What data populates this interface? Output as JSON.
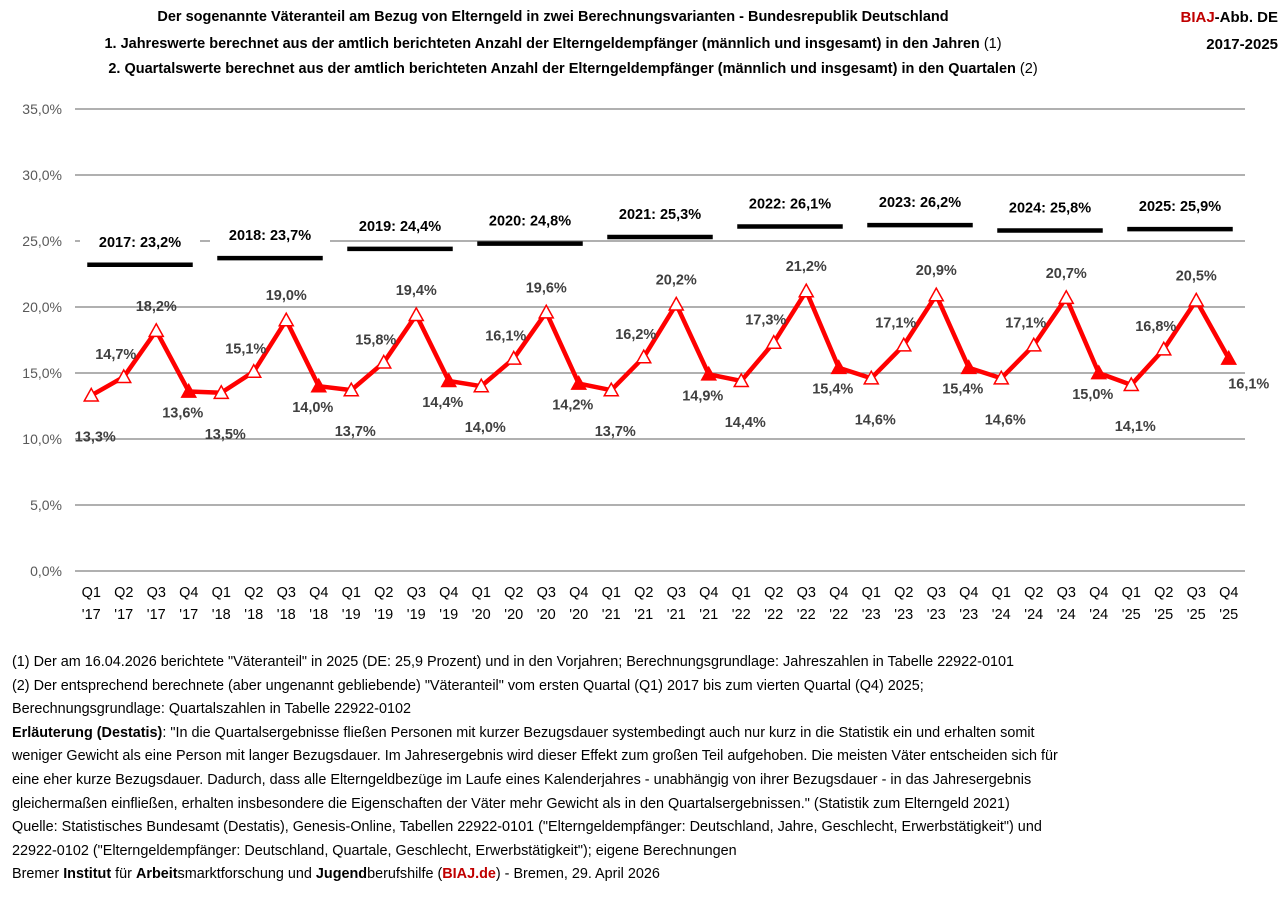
{
  "header": {
    "title": "Der sogenannte Väteranteil am Bezug von Elterngeld in zwei Berechnungsvarianten - Bundesrepublik Deutschland",
    "line1": "1. Jahreswerte berechnet aus der amtlich berichteten Anzahl der Elterngeldempfänger (männlich und insgesamt) in den Jahren",
    "line1_ref": "(1)",
    "line2": "2. Quartalswerte berechnet aus der amtlich berichteten Anzahl der Elterngeldempfänger (männlich und insgesamt) in den Quartalen",
    "line2_ref": "(2)",
    "badge_brand": "BIAJ",
    "badge_rest": "-Abb. DE",
    "badge_years": "2017-2025"
  },
  "chart_data": {
    "type": "line",
    "ylim": [
      0,
      35
    ],
    "yticks": [
      "0,0%",
      "5,0%",
      "10,0%",
      "15,0%",
      "20,0%",
      "25,0%",
      "30,0%",
      "35,0%"
    ],
    "grid": true,
    "categories": [
      "Q1 '17",
      "Q2 '17",
      "Q3 '17",
      "Q4 '17",
      "Q1 '18",
      "Q2 '18",
      "Q3 '18",
      "Q4 '18",
      "Q1 '19",
      "Q2 '19",
      "Q3 '19",
      "Q4 '19",
      "Q1 '20",
      "Q2 '20",
      "Q3 '20",
      "Q4 '20",
      "Q1 '21",
      "Q2 '21",
      "Q3 '21",
      "Q4 '21",
      "Q1 '22",
      "Q2 '22",
      "Q3 '22",
      "Q4 '22",
      "Q1 '23",
      "Q2 '23",
      "Q3 '23",
      "Q4 '23",
      "Q1 '24",
      "Q2 '24",
      "Q3 '24",
      "Q4 '24",
      "Q1 '25",
      "Q2 '25",
      "Q3 '25",
      "Q4 '25"
    ],
    "quarterly": {
      "color": "#ff0000",
      "values": [
        13.3,
        14.7,
        18.2,
        13.6,
        13.5,
        15.1,
        19.0,
        14.0,
        13.7,
        15.8,
        19.4,
        14.4,
        14.0,
        16.1,
        19.6,
        14.2,
        13.7,
        16.2,
        20.2,
        14.9,
        14.4,
        17.3,
        21.2,
        15.4,
        14.6,
        17.1,
        20.9,
        15.4,
        14.6,
        17.1,
        20.7,
        15.0,
        14.1,
        16.8,
        20.5,
        16.1
      ],
      "labels": [
        "13,3%",
        "14,7%",
        "18,2%",
        "13,6%",
        "13,5%",
        "15,1%",
        "19,0%",
        "14,0%",
        "13,7%",
        "15,8%",
        "19,4%",
        "14,4%",
        "14,0%",
        "16,1%",
        "19,6%",
        "14,2%",
        "13,7%",
        "16,2%",
        "20,2%",
        "14,9%",
        "14,4%",
        "17,3%",
        "21,2%",
        "15,4%",
        "14,6%",
        "17,1%",
        "20,9%",
        "15,4%",
        "14,6%",
        "17,1%",
        "20,7%",
        "15,0%",
        "14,1%",
        "16,8%",
        "20,5%",
        "16,1%"
      ]
    },
    "annual": {
      "color": "#000000",
      "values": [
        23.2,
        23.7,
        24.4,
        24.8,
        25.3,
        26.1,
        26.2,
        25.8,
        25.9
      ],
      "labels": [
        "2017:  23,2%",
        "2018: 23,7%",
        "2019: 24,4%",
        "2020: 24,8%",
        "2021: 25,3%",
        "2022: 26,1%",
        "2023: 26,2%",
        "2024: 25,8%",
        "2025: 25,9%"
      ]
    }
  },
  "notes": {
    "n1": "(1) Der am 16.04.2026 berichtete \"Väteranteil\" in 2025 (DE: 25,9 Prozent) und in den Vorjahren; Berechnungsgrundlage: Jahreszahlen in Tabelle  22922-0101",
    "n2": "(2) Der entsprechend berechnete (aber ungenannt gebliebende) \"Väteranteil\" vom ersten Quartal (Q1) 2017 bis zum vierten Quartal (Q4) 2025;",
    "n3": "Berechnungsgrundlage: Quartalszahlen in Tabelle 22922-0102",
    "expl_label": "Erläuterung (Destatis)",
    "expl_1": ": \"In die Quartalsergebnisse fließen Personen mit kurzer Bezugsdauer systembedingt auch nur kurz in die Statistik ein und erhalten somit",
    "expl_2": "weniger Gewicht als eine Person mit langer Bezugsdauer. Im Jahresergebnis wird dieser Effekt zum großen Teil aufgehoben. Die meisten Väter entscheiden sich für",
    "expl_3": "eine eher kurze Bezugsdauer. Dadurch, dass alle Elterngeldbezüge im Laufe eines Kalenderjahres - unabhängig von ihrer Bezugsdauer - in das Jahresergebnis",
    "expl_4": "gleichermaßen einfließen, erhalten insbesondere die Eigenschaften der Väter mehr Gewicht als in den Quartalsergebnissen.\" (Statistik zum Elterngeld  2021)",
    "source_1": "Quelle: Statistisches Bundesamt (Destatis), Genesis-Online, Tabellen 22922-0101 (\"Elterngeldempfänger: Deutschland, Jahre, Geschlecht, Erwerbstätigkeit\") und",
    "source_2": "22922-0102 (\"Elterngeldempfänger: Deutschland, Quartale, Geschlecht, Erwerbstätigkeit\"); eigene Berechnungen",
    "credit": {
      "a": "Bremer ",
      "b": "Institut",
      "c": " für ",
      "d": "Arbeit",
      "e": "smarktforschung und ",
      "f": "Jugend",
      "g": "berufshilfe (",
      "h": "BIAJ.de",
      "i": ") - Bremen, 29. April 2026"
    }
  }
}
